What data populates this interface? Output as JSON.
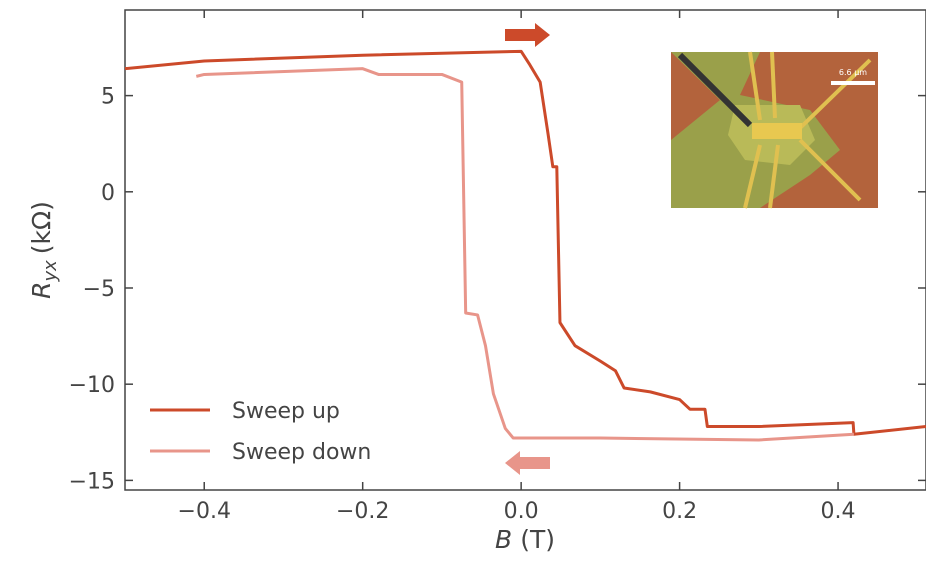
{
  "chart_data": {
    "type": "line",
    "x_label": {
      "symbol": "B",
      "unit": "(T)"
    },
    "y_label": {
      "symbol": "R",
      "subscript": "yx",
      "unit": "(kΩ)"
    },
    "inset_scale_bar": "6.6 μm",
    "xlim": [
      -0.5,
      0.511
    ],
    "ylim": [
      -15.5,
      9.45
    ],
    "xticks": [
      {
        "value": -0.4,
        "label": "−0.4"
      },
      {
        "value": -0.2,
        "label": "−0.2"
      },
      {
        "value": 0,
        "label": "0.0"
      },
      0.2,
      0.4
    ],
    "yticks": [
      {
        "value": -15,
        "label": "−15"
      },
      {
        "value": -10,
        "label": "−10"
      },
      {
        "value": -5,
        "label": "−5"
      },
      0,
      5
    ],
    "legend": "lower left",
    "series": [
      {
        "name": "Sweep up",
        "color": "#cc4a2a",
        "x": [
          -0.5,
          -0.4,
          -0.2,
          0.0,
          0.011,
          0.024,
          0.034,
          0.04,
          0.045,
          0.049,
          0.068,
          0.1,
          0.119,
          0.13,
          0.163,
          0.2,
          0.213,
          0.232,
          0.235,
          0.3,
          0.419,
          0.42,
          0.511
        ],
        "values": [
          6.4,
          6.8,
          7.1,
          7.3,
          6.6,
          5.7,
          3.0,
          1.3,
          1.3,
          -6.8,
          -8.0,
          -8.8,
          -9.3,
          -10.2,
          -10.4,
          -10.8,
          -11.3,
          -11.3,
          -12.2,
          -12.2,
          -12.0,
          -12.6,
          -12.2
        ]
      },
      {
        "name": "Sweep down",
        "color": "#e8958a",
        "x": [
          -0.41,
          -0.4,
          -0.2,
          -0.18,
          -0.1,
          -0.075,
          -0.07,
          -0.055,
          -0.045,
          -0.035,
          -0.02,
          -0.01,
          0.1,
          0.3,
          0.42
        ],
        "values": [
          6.0,
          6.1,
          6.4,
          6.1,
          6.1,
          5.7,
          -6.3,
          -6.4,
          -8.0,
          -10.5,
          -12.3,
          -12.8,
          -12.8,
          -12.9,
          -12.6
        ]
      }
    ]
  }
}
